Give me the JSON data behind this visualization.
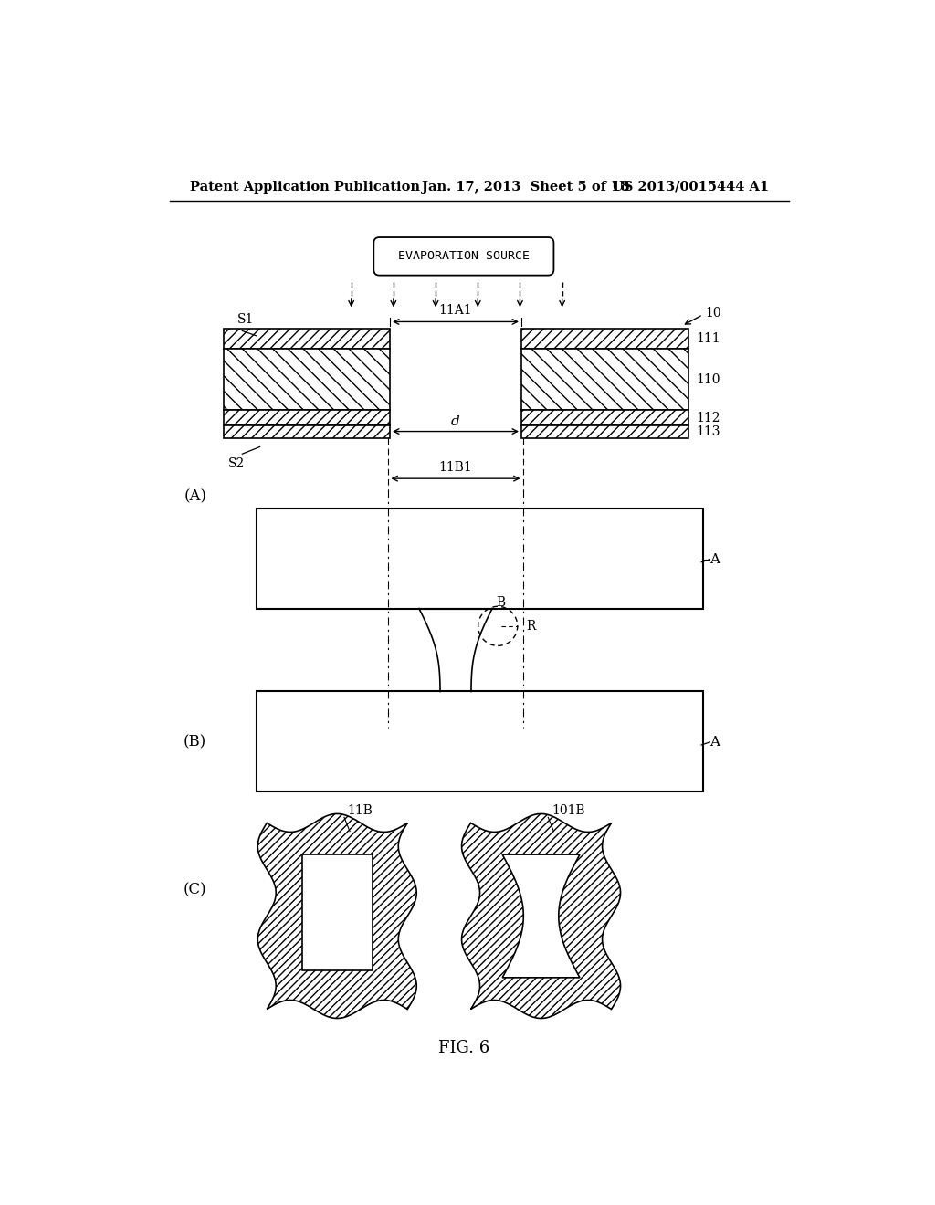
{
  "bg_color": "#ffffff",
  "header_left": "Patent Application Publication",
  "header_mid": "Jan. 17, 2013  Sheet 5 of 18",
  "header_right": "US 2013/0015444 A1",
  "fig_label": "FIG. 6",
  "evap_source_label": "EVAPORATION SOURCE",
  "label_10": "10",
  "label_11A1": "11A1",
  "label_11B1": "11B1",
  "label_d": "d",
  "label_S1": "S1",
  "label_S2": "S2",
  "label_111": "111",
  "label_110": "110",
  "label_112": "112",
  "label_113": "113",
  "label_A1": "A",
  "label_A2": "A",
  "label_B": "B",
  "label_R": "R",
  "label_11B": "11B",
  "label_101B": "101B",
  "section_A": "(A)",
  "section_B": "(B)",
  "section_C": "(C)"
}
